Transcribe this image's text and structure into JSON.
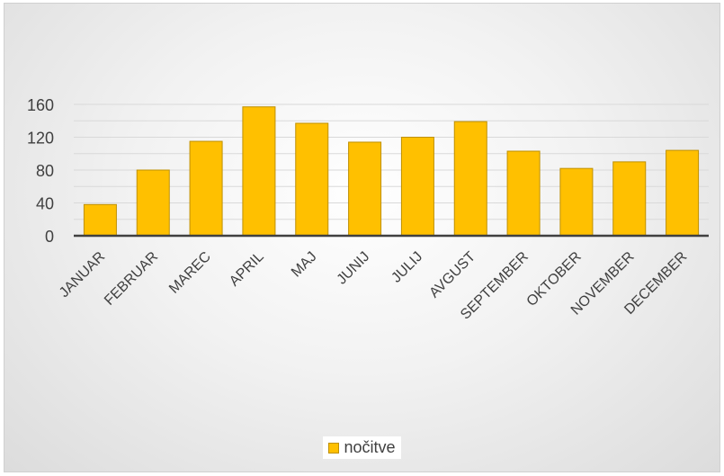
{
  "chart_data": {
    "type": "bar",
    "categories": [
      "JANUAR",
      "FEBRUAR",
      "MAREC",
      "APRIL",
      "MAJ",
      "JUNIJ",
      "JULIJ",
      "AVGUST",
      "SEPTEMBER",
      "OKTOBER",
      "NOVEMBER",
      "DECEMBER"
    ],
    "series": [
      {
        "name": "nočitve",
        "values": [
          38,
          80,
          115,
          157,
          137,
          114,
          120,
          139,
          103,
          82,
          90,
          104
        ]
      }
    ],
    "yticks": [
      "0",
      "40",
      "80",
      "120",
      "160"
    ],
    "ylim": [
      0,
      160
    ],
    "grid": true,
    "legend_position": "bottom",
    "colors": {
      "bar_fill": "#ffc000",
      "bar_stroke": "#bf9000",
      "grid": "#d9d9d9",
      "axis": "#404040"
    }
  }
}
